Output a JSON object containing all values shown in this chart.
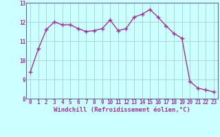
{
  "x": [
    0,
    1,
    2,
    3,
    4,
    5,
    6,
    7,
    8,
    9,
    10,
    11,
    12,
    13,
    14,
    15,
    16,
    17,
    18,
    19,
    20,
    21,
    22,
    23
  ],
  "y": [
    9.4,
    10.6,
    11.6,
    12.0,
    11.85,
    11.85,
    11.65,
    11.5,
    11.55,
    11.65,
    12.1,
    11.55,
    11.65,
    12.25,
    12.4,
    12.65,
    12.25,
    11.8,
    11.4,
    11.15,
    8.9,
    8.55,
    8.45,
    8.35
  ],
  "line_color": "#993399",
  "marker": "+",
  "marker_size": 4,
  "marker_lw": 1.0,
  "line_width": 1.0,
  "bg_color": "#ccffff",
  "grid_color": "#aacccc",
  "xlabel": "Windchill (Refroidissement éolien,°C)",
  "xlabel_color": "#993399",
  "tick_color": "#993399",
  "spine_color": "#666699",
  "ylim": [
    8,
    13
  ],
  "yticks": [
    8,
    9,
    10,
    11,
    12,
    13
  ],
  "ytick_labels": [
    "8",
    "9",
    "10",
    "11",
    "12",
    "13"
  ],
  "xticks": [
    0,
    1,
    2,
    3,
    4,
    5,
    6,
    7,
    8,
    9,
    10,
    11,
    12,
    13,
    14,
    15,
    16,
    17,
    18,
    19,
    20,
    21,
    22,
    23
  ],
  "xtick_labels": [
    "0",
    "1",
    "2",
    "3",
    "4",
    "5",
    "6",
    "7",
    "8",
    "9",
    "10",
    "11",
    "12",
    "13",
    "14",
    "15",
    "16",
    "17",
    "18",
    "19",
    "20",
    "21",
    "22",
    "23"
  ],
  "tick_fontsize": 5.5,
  "xlabel_fontsize": 6.5
}
